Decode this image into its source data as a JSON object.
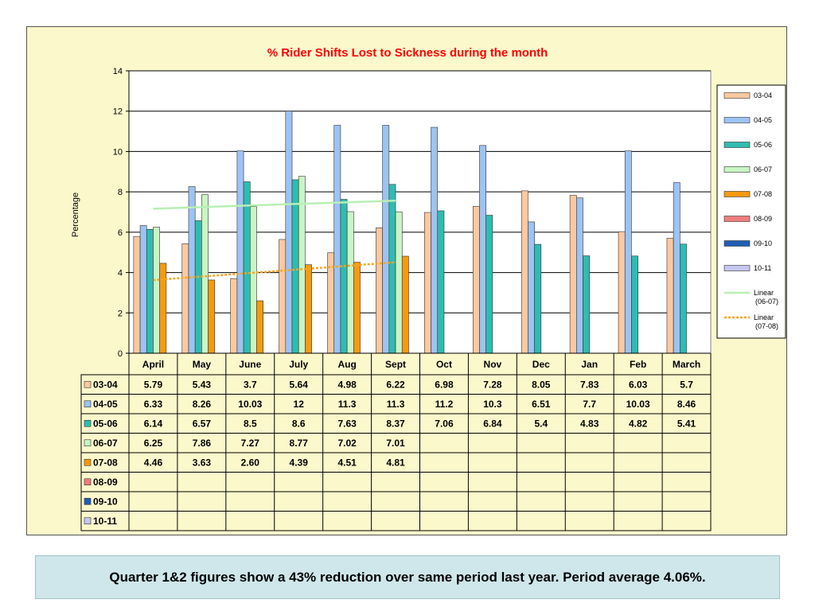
{
  "footer": {
    "text": "Quarter 1&2 figures show a 43% reduction over same period last year.  Period average 4.06%."
  },
  "chart_data": {
    "type": "bar",
    "title": "% Rider Shifts Lost to Sickness during the month",
    "title_color": "#ff0000",
    "xlabel": "",
    "ylabel": "Percentage",
    "ylim": [
      0,
      14
    ],
    "yticks": [
      "0",
      "2",
      "4",
      "6",
      "8",
      "10",
      "12",
      "14"
    ],
    "grid": true,
    "legend_position": "right",
    "plot_background": "#ffffff",
    "categories": [
      "April",
      "May",
      "June",
      "July",
      "Aug",
      "Sept",
      "Oct",
      "Nov",
      "Dec",
      "Jan",
      "Feb",
      "March"
    ],
    "series": [
      {
        "name": "03-04",
        "color": "#fbc9a0",
        "values": [
          5.79,
          5.43,
          3.7,
          5.64,
          4.98,
          6.22,
          6.98,
          7.28,
          8.05,
          7.83,
          6.03,
          5.7
        ],
        "table": [
          "5.79",
          "5.43",
          "3.7",
          "5.64",
          "4.98",
          "6.22",
          "6.98",
          "7.28",
          "8.05",
          "7.83",
          "6.03",
          "5.7"
        ]
      },
      {
        "name": "04-05",
        "color": "#9cc3f2",
        "values": [
          6.33,
          8.26,
          10.03,
          12,
          11.3,
          11.3,
          11.2,
          10.3,
          6.51,
          7.7,
          10.03,
          8.46
        ],
        "table": [
          "6.33",
          "8.26",
          "10.03",
          "12",
          "11.3",
          "11.3",
          "11.2",
          "10.3",
          "6.51",
          "7.7",
          "10.03",
          "8.46"
        ]
      },
      {
        "name": "05-06",
        "color": "#2fbcb0",
        "values": [
          6.14,
          6.57,
          8.5,
          8.6,
          7.63,
          8.37,
          7.06,
          6.84,
          5.4,
          4.83,
          4.82,
          5.41
        ],
        "table": [
          "6.14",
          "6.57",
          "8.5",
          "8.6",
          "7.63",
          "8.37",
          "7.06",
          "6.84",
          "5.4",
          "4.83",
          "4.82",
          "5.41"
        ]
      },
      {
        "name": "06-07",
        "color": "#c9f5c3",
        "values": [
          6.25,
          7.86,
          7.27,
          8.77,
          7.02,
          7.01,
          null,
          null,
          null,
          null,
          null,
          null
        ],
        "table": [
          "6.25",
          "7.86",
          "7.27",
          "8.77",
          "7.02",
          "7.01",
          "",
          "",
          "",
          "",
          "",
          ""
        ]
      },
      {
        "name": "07-08",
        "color": "#f59a12",
        "values": [
          4.46,
          3.63,
          2.6,
          4.39,
          4.51,
          4.81,
          null,
          null,
          null,
          null,
          null,
          null
        ],
        "table": [
          "4.46",
          "3.63",
          "2.60",
          "4.39",
          "4.51",
          "4.81",
          "",
          "",
          "",
          "",
          "",
          ""
        ]
      },
      {
        "name": "08-09",
        "color": "#ef7d7d",
        "values": [
          null,
          null,
          null,
          null,
          null,
          null,
          null,
          null,
          null,
          null,
          null,
          null
        ],
        "table": [
          "",
          "",
          "",
          "",
          "",
          "",
          "",
          "",
          "",
          "",
          "",
          ""
        ]
      },
      {
        "name": "09-10",
        "color": "#1f5fb4",
        "values": [
          null,
          null,
          null,
          null,
          null,
          null,
          null,
          null,
          null,
          null,
          null,
          null
        ],
        "table": [
          "",
          "",
          "",
          "",
          "",
          "",
          "",
          "",
          "",
          "",
          "",
          ""
        ]
      },
      {
        "name": "10-11",
        "color": "#c6c6f2",
        "values": [
          null,
          null,
          null,
          null,
          null,
          null,
          null,
          null,
          null,
          null,
          null,
          null
        ],
        "table": [
          "",
          "",
          "",
          "",
          "",
          "",
          "",
          "",
          "",
          "",
          "",
          ""
        ]
      }
    ],
    "trendlines": [
      {
        "name": "Linear\n(06-07)",
        "series": "06-07",
        "color": "#b8f0b4",
        "dashed": false
      },
      {
        "name": "Linear\n(07-08)",
        "series": "07-08",
        "color": "#f5a623",
        "dashed": true
      }
    ]
  }
}
